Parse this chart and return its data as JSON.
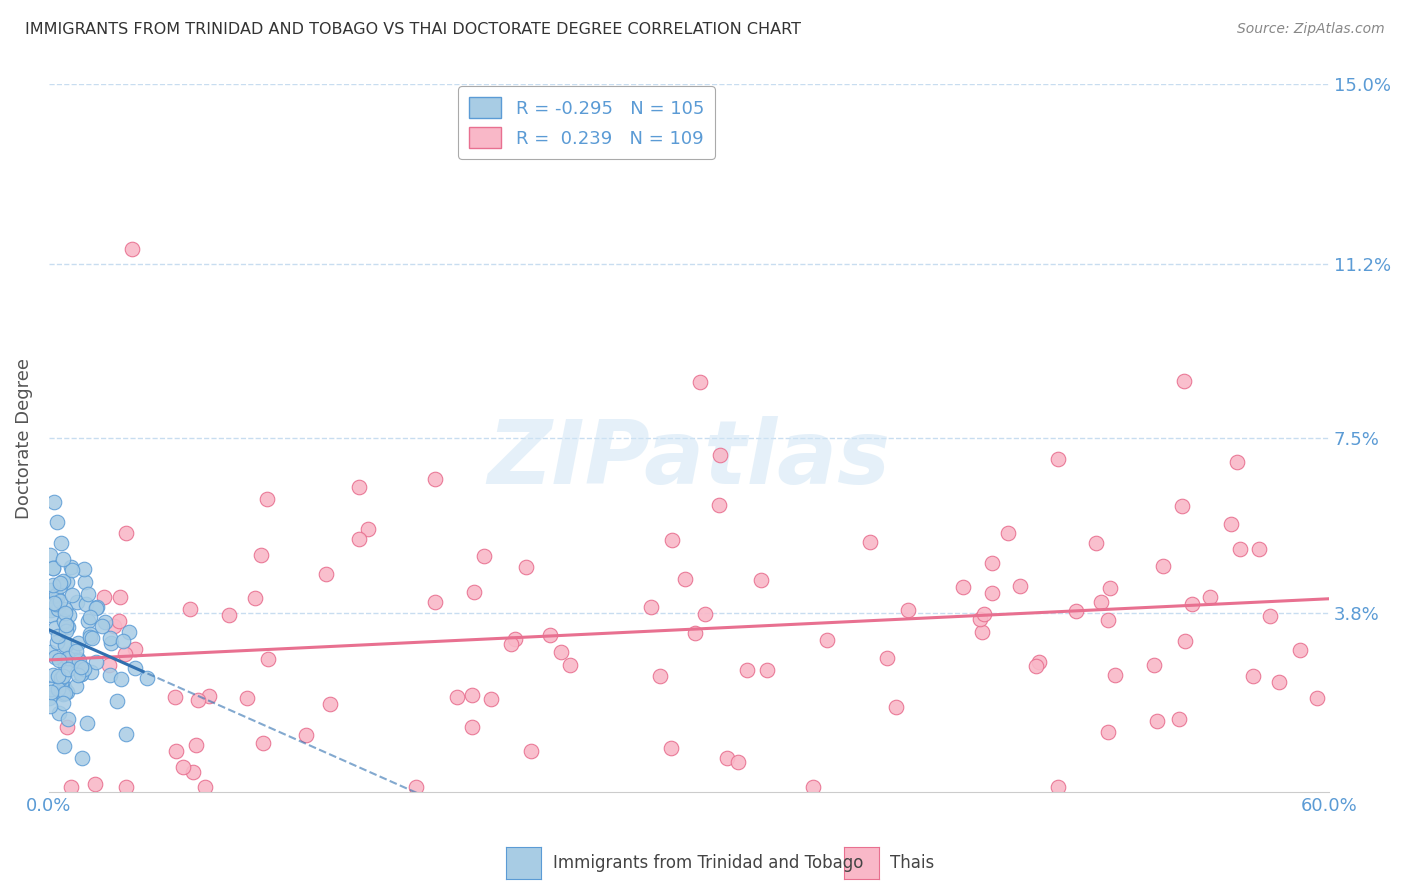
{
  "title": "IMMIGRANTS FROM TRINIDAD AND TOBAGO VS THAI DOCTORATE DEGREE CORRELATION CHART",
  "source": "Source: ZipAtlas.com",
  "ylabel": "Doctorate Degree",
  "watermark": "ZIPatlas",
  "series": [
    {
      "label": "Immigrants from Trinidad and Tobago",
      "color": "#a8cce4",
      "edge_color": "#5b9bd5",
      "R": -0.295,
      "N": 105,
      "trend_color": "#3070b0",
      "legend_face": "#a8cce4",
      "legend_edge": "#5b9bd5"
    },
    {
      "label": "Thais",
      "color": "#f9b8c8",
      "edge_color": "#e87090",
      "R": 0.239,
      "N": 109,
      "trend_color": "#e87090",
      "legend_face": "#f9b8c8",
      "legend_edge": "#e87090"
    }
  ],
  "xlim": [
    0.0,
    0.6
  ],
  "ylim": [
    0.0,
    0.15
  ],
  "yticks": [
    0.0,
    0.038,
    0.075,
    0.112,
    0.15
  ],
  "ytick_labels": [
    "",
    "3.8%",
    "7.5%",
    "11.2%",
    "15.0%"
  ],
  "xtick_labels": [
    "0.0%",
    "",
    "",
    "",
    "",
    "",
    "60.0%"
  ],
  "title_color": "#333333",
  "tick_color": "#5b9bd5",
  "grid_color": "#c8ddf0",
  "background_color": "#ffffff"
}
